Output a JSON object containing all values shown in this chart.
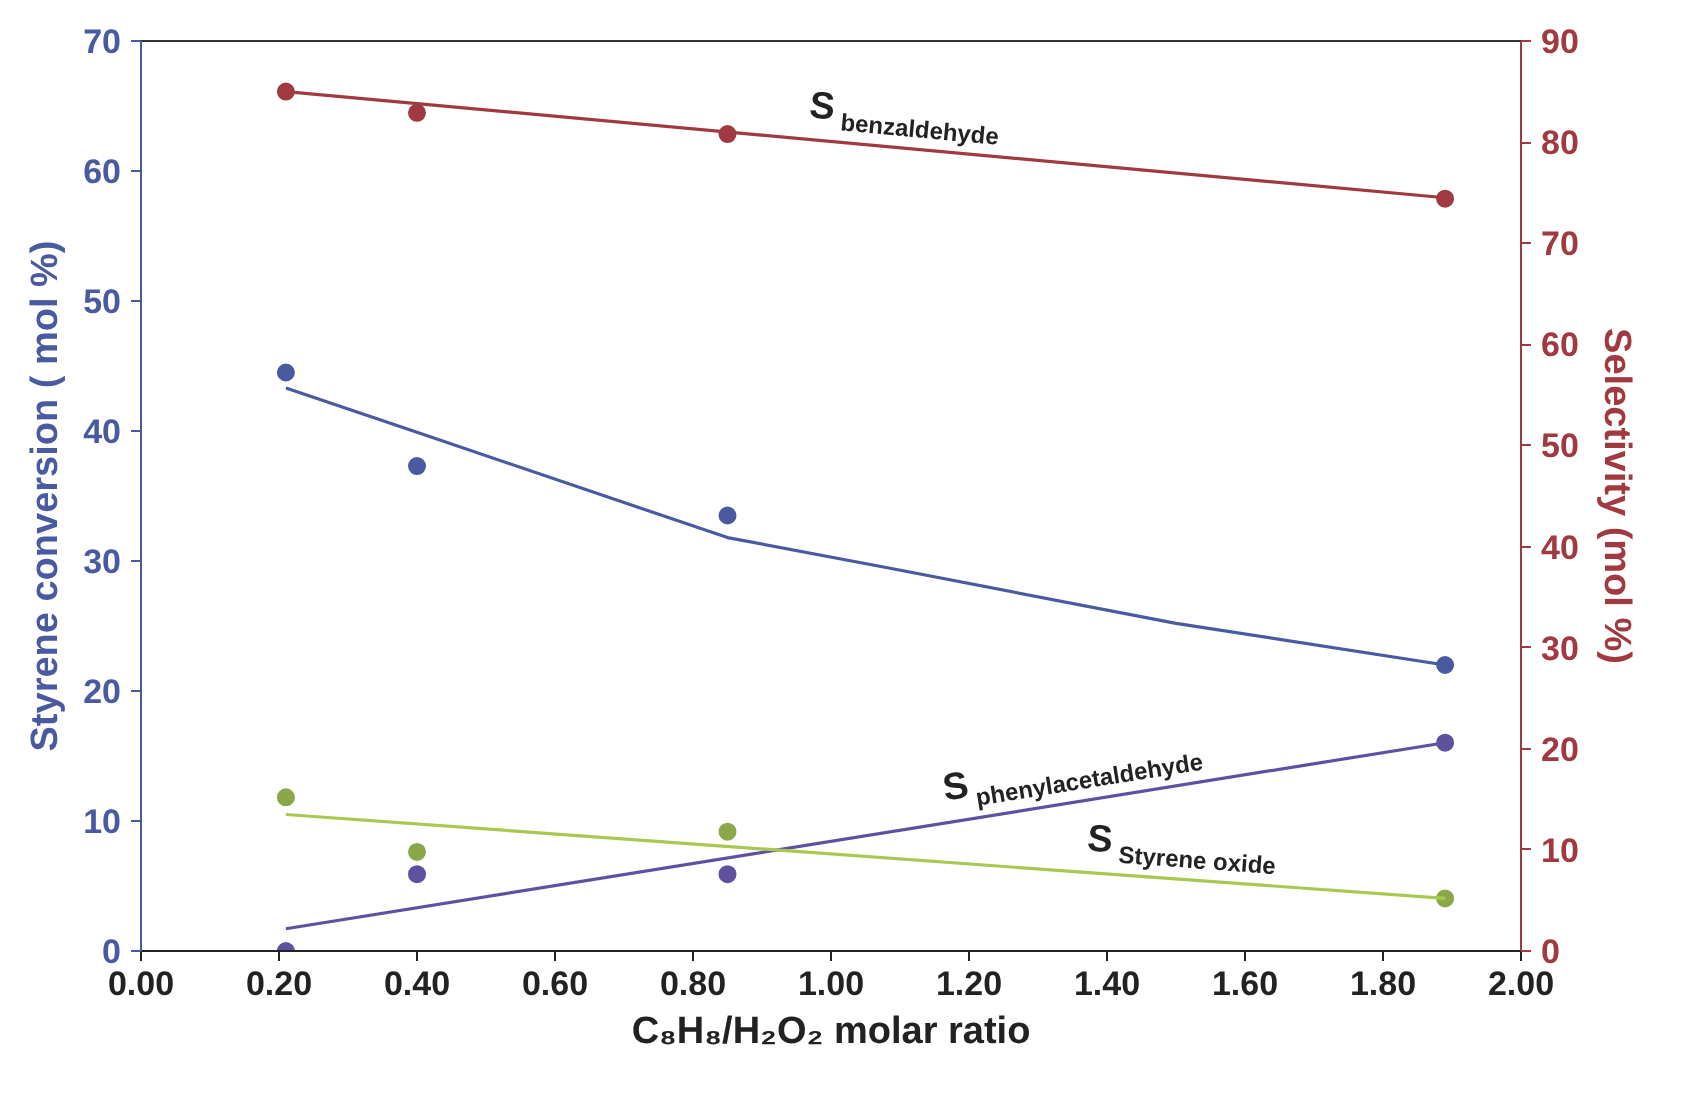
{
  "chart_data": {
    "type": "scatter",
    "xlabel": "C₈H₈/H₂O₂ molar ratio",
    "ylabel": "Styrene conversion ( mol %)",
    "y2label": "Selectivity (mol %)",
    "xlim": [
      0,
      2
    ],
    "xticks": [
      {
        "value": 0,
        "label": "0.00"
      },
      {
        "value": 0.2,
        "label": "0.20"
      },
      {
        "value": 0.4,
        "label": "0.40"
      },
      {
        "value": 0.6,
        "label": "0.60"
      },
      {
        "value": 0.8,
        "label": "0.80"
      },
      {
        "value": 1,
        "label": "1.00"
      },
      {
        "value": 1.2,
        "label": "1.20"
      },
      {
        "value": 1.4,
        "label": "1.40"
      },
      {
        "value": 1.6,
        "label": "1.60"
      },
      {
        "value": 1.8,
        "label": "1.80"
      },
      {
        "value": 2,
        "label": "2.00"
      }
    ],
    "ylim": [
      0,
      70
    ],
    "yticks": [
      0,
      10,
      20,
      30,
      40,
      50,
      60,
      70
    ],
    "y2lim": [
      0,
      90
    ],
    "y2ticks": [
      0,
      10,
      20,
      30,
      40,
      50,
      60,
      70,
      80,
      90
    ],
    "grid": false,
    "legend": false,
    "marker": "circle",
    "series": [
      {
        "color": "#4a5aa0",
        "x": [
          0.21,
          0.4,
          0.85,
          1.89
        ],
        "values": [
          44.5,
          37.3,
          33.5,
          22.0
        ]
      },
      {
        "type": "line",
        "marker": "none",
        "color": "#4a5aa0",
        "x": [
          0.21,
          0.4,
          0.85,
          1.08,
          1.5,
          1.89
        ],
        "values": [
          43.3,
          39.9,
          31.8,
          29.5,
          25.2,
          22.0
        ]
      },
      {
        "axis": "y2",
        "color": "#a03a40",
        "x": [
          0.21,
          0.4,
          0.85,
          1.89
        ],
        "values": [
          85.0,
          82.9,
          80.8,
          74.4
        ]
      },
      {
        "type": "line",
        "marker": "none",
        "axis": "y2",
        "name": "S$_{benzaldehyde}$",
        "color": "#a03a40",
        "x": [
          0.21,
          1.89
        ],
        "values": [
          85.0,
          74.5
        ]
      },
      {
        "axis": "y2",
        "color": "#6050a0",
        "x": [
          0.21,
          0.4,
          0.85,
          1.89
        ],
        "values": [
          0,
          7.6,
          7.6,
          20.6
        ]
      },
      {
        "type": "line",
        "marker": "none",
        "axis": "y2",
        "name": "S$_{phenylacetaldehyde}$",
        "color": "#6050a0",
        "x": [
          0.21,
          1.89
        ],
        "values": [
          2.2,
          20.6
        ]
      },
      {
        "axis": "y2",
        "color": "#8aa84a",
        "x": [
          0.21,
          0.4,
          0.85,
          1.89
        ],
        "values": [
          15.2,
          9.8,
          11.8,
          5.2
        ]
      },
      {
        "type": "line",
        "marker": "none",
        "axis": "y2",
        "name": "S$_{Styrene oxide}$",
        "color": "#a8c850",
        "x": [
          0.21,
          1.89
        ],
        "values": [
          13.5,
          5.2
        ]
      }
    ]
  }
}
